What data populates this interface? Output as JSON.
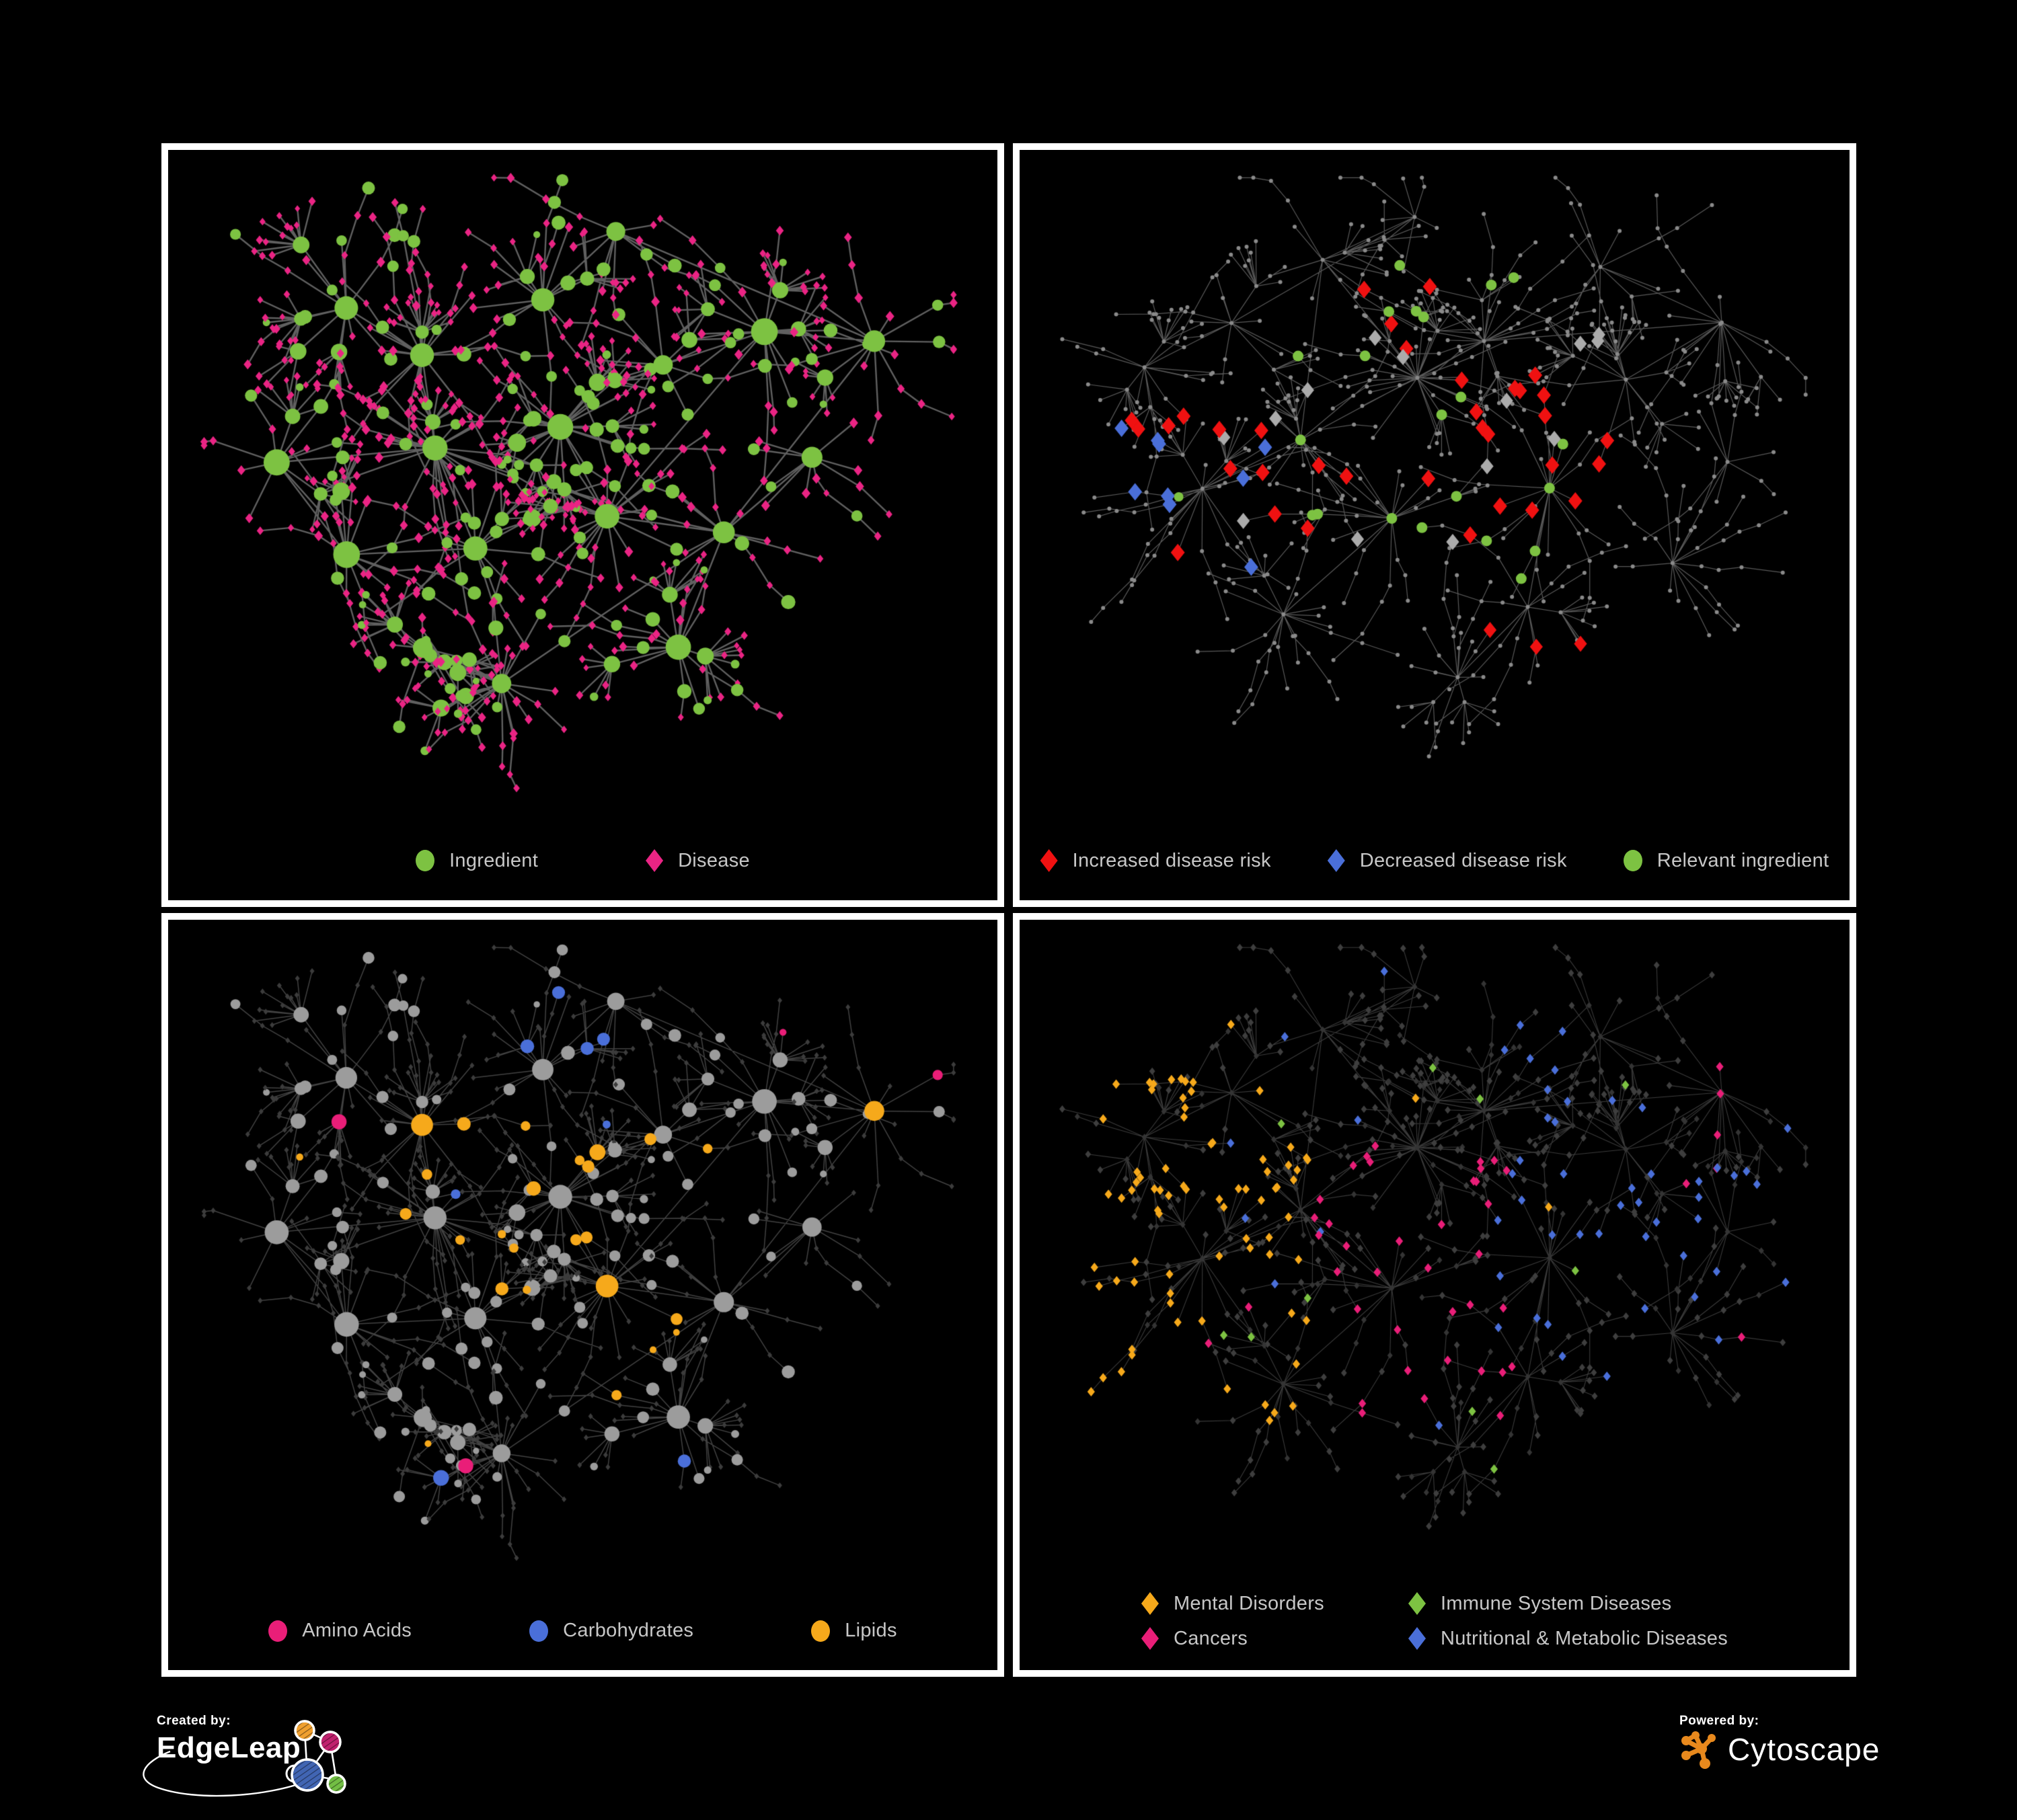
{
  "page": {
    "background": "#000000",
    "panel_border": "#FFFFFF",
    "legend_text_color": "#C7C7C7"
  },
  "colors": {
    "green": "#7DC242",
    "pink_disease": "#EA2484",
    "magenta": "#E91E78",
    "red": "#F01111",
    "blue": "#4A6FD9",
    "gold": "#F6A91B",
    "gray_highlight": "#ABABAB",
    "gray_circle": "#9C9C9C",
    "dark_diamond": "#3A3A3A",
    "small_dot": "#8A8A8A"
  },
  "panels": [
    {
      "name": "ingredient-disease-network",
      "layout": "A",
      "legend_layout": "row",
      "legend": [
        {
          "label": "Ingredient",
          "shape": "circle",
          "color": "#7DC242"
        },
        {
          "label": "Disease",
          "shape": "diamond",
          "color": "#EA2484"
        }
      ],
      "style": {
        "edge": {
          "color": "#717171",
          "width": 2.4,
          "alpha": 0.85
        },
        "sizeMul": 1.25,
        "base": {
          "i": {
            "shape": "circle",
            "color": "#7DC242"
          },
          "d": {
            "shape": "diamond",
            "color": "#EA2484"
          }
        },
        "rules": []
      }
    },
    {
      "name": "disease-risk-network",
      "layout": "B",
      "legend_layout": "row",
      "legend": [
        {
          "label": "Increased disease risk",
          "shape": "diamond",
          "color": "#F01111"
        },
        {
          "label": "Decreased disease risk",
          "shape": "diamond",
          "color": "#4A6FD9"
        },
        {
          "label": "Relevant ingredient",
          "shape": "circle",
          "color": "#7DC242"
        }
      ],
      "style": {
        "edge": {
          "color": "#7C7C7C",
          "width": 1.2,
          "alpha": 0.72
        },
        "sizeMul": 1,
        "base": {
          "i": {
            "shape": "circle",
            "color": "#8A8A8A",
            "rFixed": 3
          },
          "d": {
            "shape": "circle",
            "color": "#8A8A8A",
            "rFixed": 3
          }
        },
        "rules": [
          {
            "target": "d",
            "region": [
              0.82,
              0.97,
              0.08,
              0.22
            ],
            "p": 0.5,
            "color": "#4A6FD9",
            "shape": "diamond",
            "rFixed": 12
          },
          {
            "target": "d",
            "region": [
              0.1,
              0.3,
              0.36,
              0.62
            ],
            "p": 0.16,
            "color": "#4A6FD9",
            "shape": "diamond",
            "rFixed": 13
          },
          {
            "target": "d",
            "region": [
              0.1,
              0.3,
              0.36,
              0.62
            ],
            "p": 0.14,
            "color": "#F01111",
            "shape": "diamond",
            "rFixed": 13
          },
          {
            "target": "d",
            "region": [
              0.33,
              0.72,
              0.18,
              0.62
            ],
            "p": 0.11,
            "color": "#F01111",
            "shape": "diamond",
            "rFixed": 13
          },
          {
            "target": "d",
            "region": [
              0.56,
              0.78,
              0.7,
              0.88
            ],
            "p": 0.2,
            "color": "#F01111",
            "shape": "diamond",
            "rFixed": 12
          },
          {
            "target": "d",
            "region": [
              0.16,
              0.78,
              0.2,
              0.7
            ],
            "p": 0.028,
            "color": "#ABABAB",
            "shape": "diamond",
            "rFixed": 12
          },
          {
            "target": "i",
            "region": [
              0.3,
              0.7,
              0.15,
              0.6
            ],
            "p": 0.3,
            "color": "#7DC242",
            "shape": "circle",
            "rFixed": 8
          },
          {
            "target": "i",
            "region": [
              0.1,
              0.3,
              0.3,
              0.6
            ],
            "p": 0.22,
            "color": "#7DC242",
            "shape": "circle",
            "rFixed": 7
          },
          {
            "target": "i",
            "region": [
              0.6,
              0.74,
              0.46,
              0.64
            ],
            "p": 0.38,
            "color": "#7DC242",
            "shape": "circle",
            "rFixed": 8
          }
        ]
      }
    },
    {
      "name": "nutrient-class-network",
      "layout": "A",
      "legend_layout": "row",
      "legend": [
        {
          "label": "Amino Acids",
          "shape": "circle",
          "color": "#E91E78"
        },
        {
          "label": "Carbohydrates",
          "shape": "circle",
          "color": "#4A6FD9"
        },
        {
          "label": "Lipids",
          "shape": "circle",
          "color": "#F6A91B"
        }
      ],
      "style": {
        "edge": {
          "color": "#A6A6A6",
          "width": 1.5,
          "alpha": 0.4
        },
        "sizeMul": 1.15,
        "base": {
          "i": {
            "shape": "circle",
            "color": "#9C9C9C"
          },
          "d": {
            "shape": "diamond",
            "color": "#3C3C3C",
            "rFixed": 4.4
          }
        },
        "rules": [
          {
            "target": "i",
            "region": [
              0.26,
              0.52,
              0.26,
              0.5
            ],
            "p": 0.45,
            "color": "#F6A91B",
            "shape": "circle"
          },
          {
            "target": "i",
            "region": [
              0.5,
              0.64,
              0.52,
              0.66
            ],
            "p": 0.5,
            "color": "#F6A91B",
            "shape": "circle"
          },
          {
            "target": "i",
            "region": [
              0.42,
              0.58,
              0.14,
              0.32
            ],
            "p": 0.3,
            "color": "#4A6FD9",
            "shape": "circle"
          },
          {
            "target": "i",
            "region": null,
            "p": 0.05,
            "color": "#F6A91B",
            "shape": "circle"
          },
          {
            "target": "i",
            "region": null,
            "p": 0.045,
            "color": "#E91E78",
            "shape": "circle"
          },
          {
            "target": "i",
            "region": null,
            "p": 0.02,
            "color": "#4A6FD9",
            "shape": "circle"
          }
        ]
      }
    },
    {
      "name": "disease-category-network",
      "layout": "B",
      "legend_layout": "grid",
      "legend": [
        {
          "label": "Mental Disorders",
          "shape": "diamond",
          "color": "#F6A91B"
        },
        {
          "label": "Immune System Diseases",
          "shape": "diamond",
          "color": "#7DC242"
        },
        {
          "label": "Cancers",
          "shape": "diamond",
          "color": "#E91E78"
        },
        {
          "label": "Nutritional & Metabolic Diseases",
          "shape": "diamond",
          "color": "#4A6FD9"
        }
      ],
      "style": {
        "edge": {
          "color": "#9B9B9B",
          "width": 1.1,
          "alpha": 0.38
        },
        "sizeMul": 1,
        "base": {
          "i": {
            "shape": "diamond",
            "color": "#343434",
            "rFixed": 5
          },
          "d": {
            "shape": "diamond",
            "color": "#3E3E3E",
            "rFixed": 5.5
          }
        },
        "rules": [
          {
            "target": "d",
            "region": [
              0.04,
              0.34,
              0.22,
              0.78
            ],
            "p": 0.5,
            "color": "#F6A91B",
            "shape": "diamond",
            "rFixed": 7
          },
          {
            "target": "d",
            "region": [
              0.84,
              0.97,
              0.12,
              0.26
            ],
            "p": 0.5,
            "color": "#E91E78",
            "shape": "diamond",
            "rFixed": 7
          },
          {
            "target": "d",
            "region": [
              0.34,
              0.6,
              0.3,
              0.75
            ],
            "p": 0.32,
            "color": "#E91E78",
            "shape": "diamond",
            "rFixed": 7
          },
          {
            "target": "d",
            "region": [
              0.58,
              0.95,
              0.1,
              0.8
            ],
            "p": 0.3,
            "color": "#4A6FD9",
            "shape": "diamond",
            "rFixed": 7
          },
          {
            "target": "d",
            "region": [
              0.28,
              0.62,
              0.04,
              0.2
            ],
            "p": 0.18,
            "color": "#4A6FD9",
            "shape": "diamond",
            "rFixed": 7
          },
          {
            "target": "d",
            "region": null,
            "p": 0.03,
            "color": "#7DC242",
            "shape": "diamond",
            "rFixed": 7
          },
          {
            "target": "d",
            "region": null,
            "p": 0.02,
            "color": "#F6A91B",
            "shape": "diamond",
            "rFixed": 7
          },
          {
            "target": "d",
            "region": null,
            "p": 0.02,
            "color": "#E91E78",
            "shape": "diamond",
            "rFixed": 7
          },
          {
            "target": "d",
            "region": null,
            "p": 0.02,
            "color": "#4A6FD9",
            "shape": "diamond",
            "rFixed": 7
          }
        ]
      }
    }
  ],
  "network": {
    "layouts": {
      "A": {
        "seed": 11,
        "clusters": [
          [
            0.2,
            0.22,
            14,
            1.0
          ],
          [
            0.12,
            0.45,
            10,
            1.0
          ],
          [
            0.3,
            0.3,
            22,
            1.0
          ],
          [
            0.45,
            0.2,
            14,
            1.0
          ],
          [
            0.32,
            0.44,
            26,
            1.1
          ],
          [
            0.47,
            0.4,
            24,
            1.0
          ],
          [
            0.21,
            0.6,
            13,
            1.0
          ],
          [
            0.36,
            0.6,
            12,
            0.9
          ],
          [
            0.53,
            0.55,
            18,
            1.0
          ],
          [
            0.4,
            0.8,
            22,
            0.9
          ],
          [
            0.63,
            0.75,
            16,
            0.9
          ],
          [
            0.68,
            0.57,
            10,
            0.9
          ],
          [
            0.6,
            0.3,
            10,
            0.9
          ],
          [
            0.73,
            0.25,
            16,
            1.1
          ],
          [
            0.86,
            0.28,
            10,
            1.0
          ],
          [
            0.79,
            0.45,
            9,
            0.9
          ],
          [
            0.29,
            0.74,
            9,
            0.8
          ],
          [
            0.55,
            0.11,
            8,
            0.9
          ]
        ],
        "greenCluster": 5
      },
      "B": {
        "seed": 47,
        "clusters": [
          [
            0.13,
            0.32,
            12,
            1.0
          ],
          [
            0.24,
            0.24,
            11,
            1.0
          ],
          [
            0.35,
            0.14,
            9,
            0.9
          ],
          [
            0.48,
            0.09,
            7,
            0.9
          ],
          [
            0.2,
            0.5,
            18,
            1.0
          ],
          [
            0.33,
            0.42,
            14,
            0.9
          ],
          [
            0.47,
            0.33,
            28,
            1.0
          ],
          [
            0.57,
            0.27,
            20,
            0.9
          ],
          [
            0.44,
            0.55,
            16,
            0.9
          ],
          [
            0.3,
            0.7,
            15,
            0.9
          ],
          [
            0.52,
            0.79,
            13,
            0.9
          ],
          [
            0.65,
            0.5,
            18,
            1.0
          ],
          [
            0.75,
            0.33,
            11,
            0.9
          ],
          [
            0.7,
            0.16,
            9,
            0.9
          ],
          [
            0.86,
            0.24,
            12,
            1.0
          ],
          [
            0.8,
            0.62,
            15,
            1.0
          ],
          [
            0.62,
            0.68,
            9,
            0.8
          ],
          [
            0.88,
            0.45,
            7,
            0.8
          ]
        ],
        "greenCluster": -1
      }
    }
  },
  "footer": {
    "created_by": {
      "label": "Created by:",
      "brand": "EdgeLeap"
    },
    "powered_by": {
      "label": "Powered by:",
      "brand": "Cytoscape"
    },
    "edgeleap_logo_colors": {
      "orange": "#F0A02F",
      "pink": "#C0226E",
      "blue": "#4165B3",
      "green": "#72BE44"
    },
    "cytoscape_logo_color": "#E8891D"
  }
}
